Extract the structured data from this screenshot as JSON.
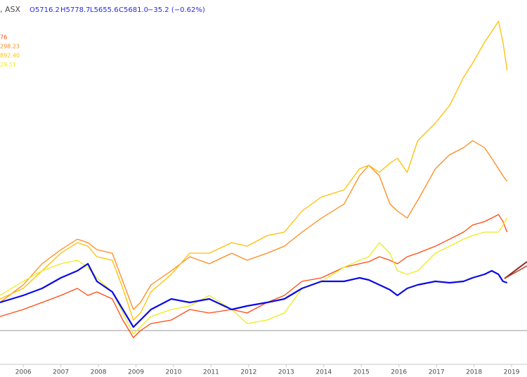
{
  "chart_data": {
    "type": "line",
    "header": {
      "symbol": ", ASX",
      "open": "O5716.2",
      "high": "H5778.7",
      "low": "L5655.6",
      "close": "C5681.0",
      "change": "−35.2 (−0.62%)"
    },
    "x": [
      2005.38,
      2006.0,
      2006.5,
      2007.0,
      2007.44,
      2007.72,
      2007.96,
      2008.37,
      2008.65,
      2008.93,
      2009.12,
      2009.4,
      2009.94,
      2010.43,
      2010.95,
      2011.55,
      2011.96,
      2012.49,
      2012.95,
      2013.42,
      2013.94,
      2014.54,
      2014.95,
      2015.2,
      2015.48,
      2015.76,
      2015.96,
      2016.22,
      2016.5,
      2016.97,
      2017.35,
      2017.72,
      2017.96,
      2018.28,
      2018.47,
      2018.65,
      2018.77,
      2018.88
    ],
    "series": [
      {
        "name": "76",
        "color": "#ff4a12",
        "values": [
          14,
          16,
          18,
          20,
          22,
          20,
          21,
          19,
          13,
          8,
          10,
          12,
          13,
          16,
          15,
          16,
          15,
          18,
          20,
          24,
          25,
          28,
          29,
          29.6,
          31,
          30,
          29,
          31,
          32,
          34,
          36,
          38,
          40,
          41,
          42,
          43,
          41,
          38
        ]
      },
      {
        "name": "298.23",
        "color": "#ff8a1c",
        "values": [
          18,
          23,
          29,
          33,
          36,
          35,
          33,
          32,
          24,
          16,
          18,
          23,
          27,
          31,
          29,
          32,
          30,
          32,
          34,
          38,
          42,
          46,
          54,
          57,
          54,
          46,
          44,
          42,
          47,
          56,
          60,
          62,
          64,
          62,
          59,
          56,
          54,
          52.4
        ]
      },
      {
        "name": "892.40",
        "color": "#ffbf00",
        "values": [
          19,
          22,
          27,
          32,
          35,
          34,
          31,
          30,
          22,
          13,
          15,
          21,
          26,
          32,
          32,
          35,
          34,
          37,
          38,
          44,
          48,
          50,
          56,
          57,
          55,
          57.6,
          59,
          55,
          64,
          69,
          74,
          82,
          86,
          92,
          95,
          98,
          92,
          84
        ]
      },
      {
        "name": "29.51",
        "color": "#ecec1c",
        "values": [
          20,
          24,
          27,
          29,
          30,
          28,
          25,
          21,
          15,
          9,
          11,
          14,
          16,
          17,
          20,
          16,
          12,
          13,
          15,
          22,
          24,
          28,
          30,
          31,
          35,
          32,
          27,
          26,
          27,
          32,
          34,
          36,
          37,
          38,
          38,
          38,
          40,
          42
        ]
      },
      {
        "color": "#0a0ae6",
        "values": [
          18,
          20,
          22,
          25,
          27,
          29,
          24,
          21,
          16,
          11,
          13,
          16,
          19,
          18,
          19,
          16,
          17,
          18,
          19,
          22,
          24,
          24,
          25,
          24.4,
          23,
          21.6,
          20,
          22,
          23,
          24,
          23.6,
          24,
          25,
          26,
          27,
          26,
          24,
          23.6
        ]
      }
    ],
    "reference_line": 10,
    "xlim": [
      2005.38,
      2019.41
    ],
    "xticks": [
      2006,
      2007,
      2008,
      2009,
      2010,
      2011,
      2012,
      2013,
      2014,
      2015,
      2016,
      2017,
      2018,
      2019
    ],
    "ylim": [
      0,
      100
    ]
  }
}
